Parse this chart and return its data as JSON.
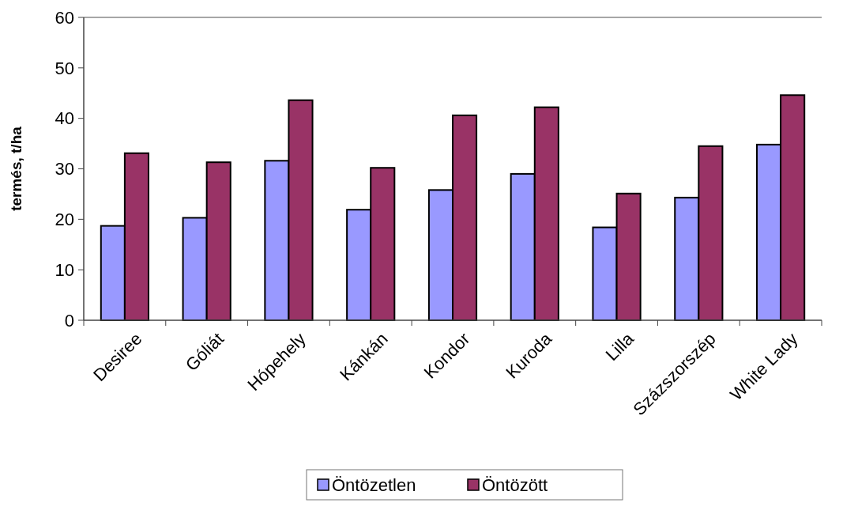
{
  "chart_data": {
    "type": "bar",
    "ylabel": "termés, t/ha",
    "categories": [
      "Desiree",
      "Góliát",
      "Hópehely",
      "Kánkán",
      "Kondor",
      "Kuroda",
      "Lilla",
      "Százszorszép",
      "White Lady"
    ],
    "series": [
      {
        "name": "Öntözetlen",
        "color": "#9999ff",
        "values": [
          18.7,
          20.3,
          31.6,
          21.9,
          25.8,
          29.0,
          18.4,
          24.3,
          34.8
        ]
      },
      {
        "name": "Öntözött",
        "color": "#993366",
        "values": [
          33.1,
          31.3,
          43.6,
          30.2,
          40.6,
          42.2,
          25.1,
          34.5,
          44.6
        ]
      }
    ],
    "ylim": [
      0,
      60
    ],
    "yticks": [
      0,
      10,
      20,
      30,
      40,
      50,
      60
    ],
    "grid": false,
    "legend": "bottom"
  }
}
